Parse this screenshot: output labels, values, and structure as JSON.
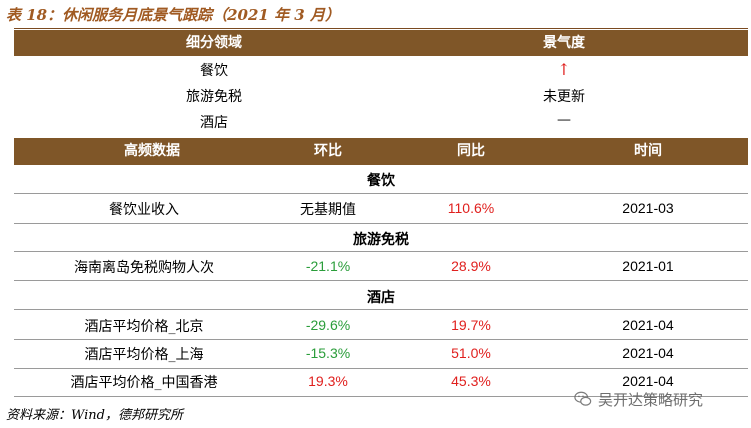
{
  "title": "表 18：休闲服务月底景气跟踪（2021 年 3 月）",
  "top_table": {
    "headers": [
      "细分领域",
      "景气度"
    ],
    "rows": [
      {
        "sector": "餐饮",
        "sentiment": "↑"
      },
      {
        "sector": "旅游免税",
        "sentiment": "未更新"
      },
      {
        "sector": "酒店",
        "sentiment": "—"
      }
    ]
  },
  "data_table": {
    "headers": [
      "高频数据",
      "环比",
      "同比",
      "时间"
    ],
    "sections": [
      {
        "name": "餐饮",
        "rows": [
          {
            "label": "餐饮业收入",
            "mom": "无基期值",
            "yoy": "110.6%",
            "date": "2021-03"
          }
        ]
      },
      {
        "name": "旅游免税",
        "rows": [
          {
            "label": "海南离岛免税购物人次",
            "mom": "-21.1%",
            "yoy": "28.9%",
            "date": "2021-01"
          }
        ]
      },
      {
        "name": "酒店",
        "rows": [
          {
            "label": "酒店平均价格_北京",
            "mom": "-29.6%",
            "yoy": "19.7%",
            "date": "2021-04"
          },
          {
            "label": "酒店平均价格_上海",
            "mom": "-15.3%",
            "yoy": "51.0%",
            "date": "2021-04"
          },
          {
            "label": "酒店平均价格_中国香港",
            "mom": "19.3%",
            "yoy": "45.3%",
            "date": "2021-04"
          }
        ]
      }
    ]
  },
  "source": "资料来源：Wind，德邦研究所",
  "watermark": "吴开达策略研究",
  "colors": {
    "header_bg": "#7f5628",
    "title": "#a05a22",
    "positive": "#e0201e",
    "negative": "#2a9d3a"
  }
}
